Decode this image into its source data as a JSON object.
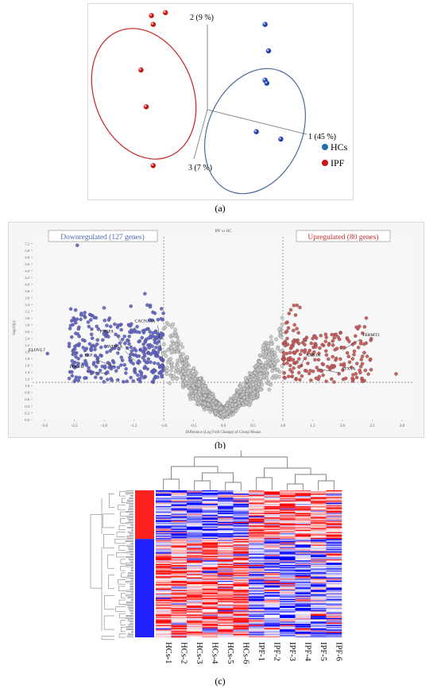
{
  "panel_labels": {
    "a": "(a)",
    "b": "(b)",
    "c": "(c)"
  },
  "chart_data": [
    {
      "id": "a",
      "type": "scatter",
      "axis_labels": {
        "x": "1 (45 %)",
        "y": "2 (9 %)",
        "z": "3 (7 %)"
      },
      "legend": {
        "position": "right",
        "entries": [
          {
            "name": "HCs",
            "color": "#1f6fb2"
          },
          {
            "name": "IPF",
            "color": "#cc1111"
          }
        ]
      },
      "series": [
        {
          "name": "HCs",
          "color": "#1f3fb2",
          "points": [
            [
              0.33,
              0.58
            ],
            [
              0.35,
              0.4
            ],
            [
              0.33,
              0.2
            ],
            [
              0.34,
              0.18
            ],
            [
              0.28,
              -0.15
            ],
            [
              0.42,
              -0.2
            ]
          ]
        },
        {
          "name": "IPF",
          "color": "#cc1111",
          "points": [
            [
              -0.32,
              0.64
            ],
            [
              -0.24,
              0.66
            ],
            [
              -0.31,
              0.58
            ],
            [
              -0.38,
              0.27
            ],
            [
              -0.35,
              0.02
            ],
            [
              -0.31,
              -0.38
            ]
          ]
        }
      ],
      "ellipses": [
        {
          "group": "IPF",
          "color": "#cc2222"
        },
        {
          "group": "HCs",
          "color": "#4a6a9a"
        }
      ]
    },
    {
      "id": "b",
      "type": "scatter",
      "title": "IPF vs HC",
      "xlabel": "Difference (Log Fold Change) of Group Means",
      "ylabel": "-log10(p)",
      "xlim": [
        -3.2,
        3.2
      ],
      "ylim": [
        0,
        5.4
      ],
      "xticks": [
        "-3.0",
        "-2.5",
        "-2.0",
        "-1.5",
        "-1.0",
        "-0.5",
        "0.0",
        "0.5",
        "1.0",
        "1.5",
        "2.0",
        "2.5",
        "3.0"
      ],
      "yticks": [
        "0.0",
        "0.2",
        "0.4",
        "0.6",
        "0.8",
        "1.0",
        "1.2",
        "1.4",
        "1.6",
        "1.8",
        "2.0",
        "2.2",
        "2.4",
        "2.6",
        "2.8",
        "3.0",
        "3.2",
        "3.4",
        "3.6",
        "3.8",
        "4.0",
        "4.2",
        "4.4",
        "4.6",
        "4.8",
        "5.0",
        "5.2"
      ],
      "thresholds": {
        "x": [
          -1.0,
          1.0
        ],
        "y": 1.1
      },
      "down_label": "Downregulated (127 genes)",
      "up_label": "Upregulated (80 genes)",
      "colors": {
        "down": "#5a5ec8",
        "up": "#c85050",
        "ns": "#c8c8c8",
        "down_text": "#4a6ab0",
        "up_text": "#c03030"
      },
      "annotations": [
        {
          "text": "ELOVL7",
          "x": -2.95,
          "y": 1.95
        },
        {
          "text": "PDGFA",
          "x": -1.8,
          "y": 2.5
        },
        {
          "text": "CACNA1A",
          "x": -1.1,
          "y": 2.8
        },
        {
          "text": "AVPR1A",
          "x": -1.65,
          "y": 2.05
        },
        {
          "text": "EGF",
          "x": -2.15,
          "y": 1.8
        },
        {
          "text": "PDGFB",
          "x": -2.3,
          "y": 1.45
        },
        {
          "text": "RAB3A",
          "x": 1.35,
          "y": 1.8
        },
        {
          "text": "FERMT2",
          "x": 2.3,
          "y": 2.4
        },
        {
          "text": "STX1A",
          "x": 1.95,
          "y": 1.4
        }
      ],
      "highlight_points": [
        [
          -2.45,
          5.15
        ],
        [
          -2.95,
          1.95
        ],
        [
          -2.5,
          2.95
        ],
        [
          -2.0,
          3.3
        ],
        [
          -1.55,
          3.35
        ],
        [
          2.4,
          3.0
        ],
        [
          2.9,
          1.35
        ]
      ]
    },
    {
      "id": "c",
      "type": "heatmap",
      "columns": [
        "HCs-1",
        "HCs-2",
        "HCs-3",
        "HCs-4",
        "HCs-5",
        "HCs-6",
        "IPF-1",
        "IPF-2",
        "IPF-3",
        "IPF-4",
        "IPF-5",
        "IPF-6"
      ],
      "column_order": [
        0,
        1,
        2,
        3,
        4,
        5,
        6,
        7,
        8,
        9,
        10,
        11
      ],
      "row_count": 130,
      "colors": {
        "low": "#1a1aff",
        "mid": "#ffffff",
        "high": "#ff1a1a"
      },
      "groups": {
        "upper_rows_fraction": 0.33
      }
    }
  ]
}
